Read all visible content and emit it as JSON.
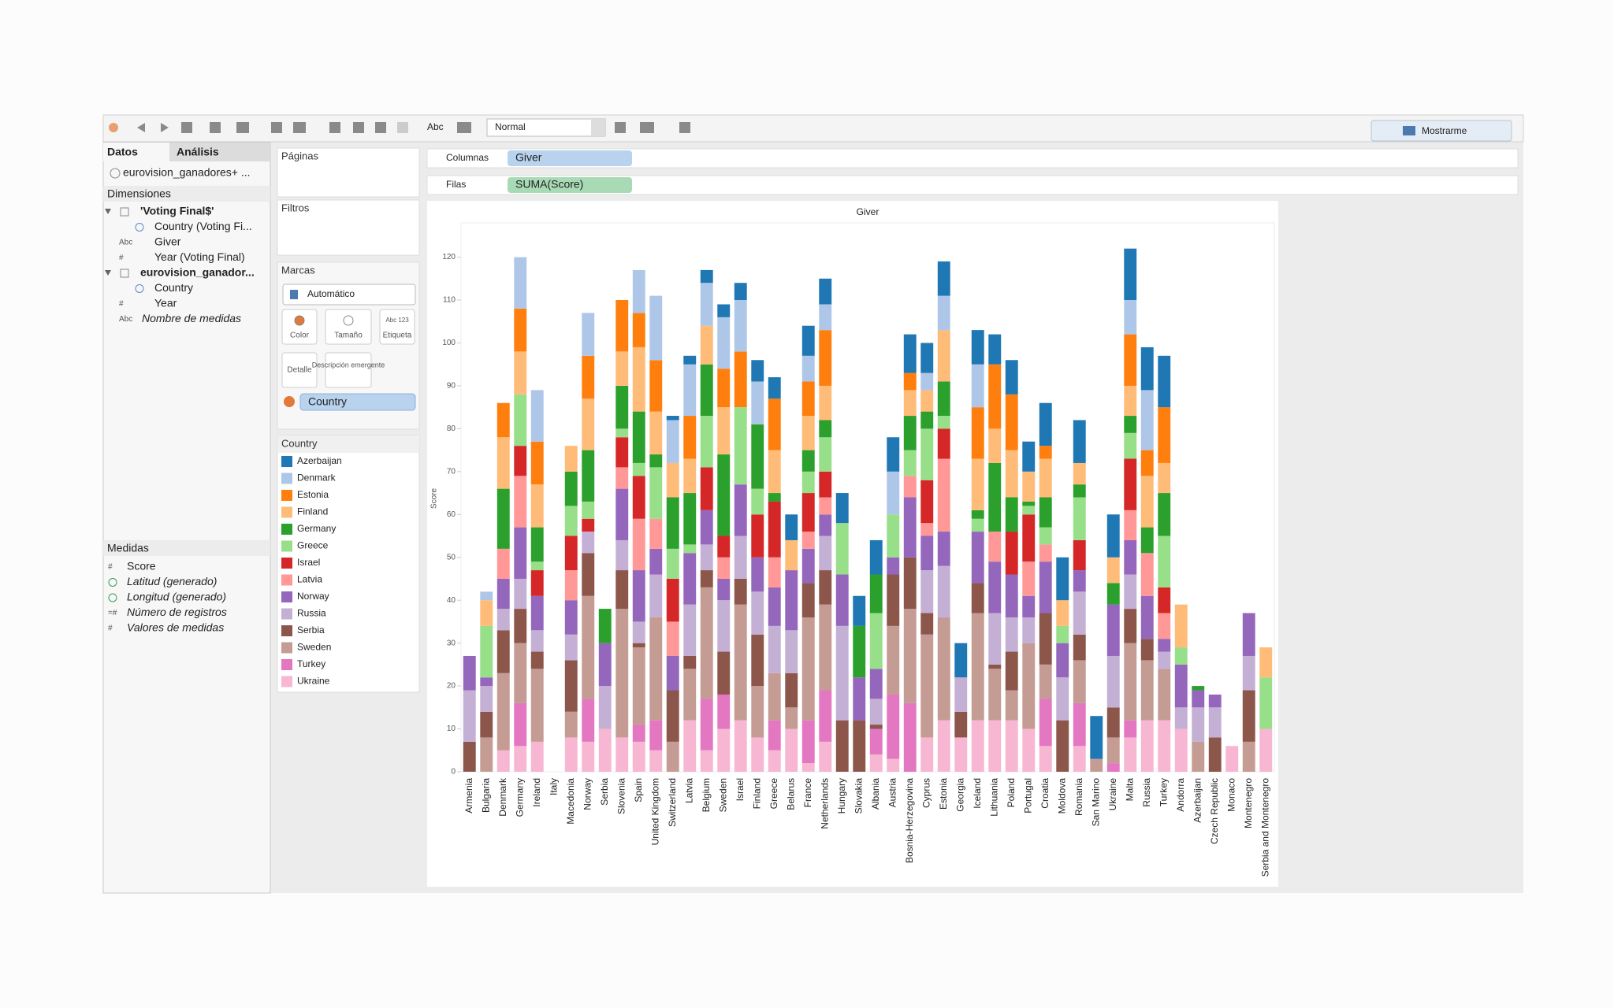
{
  "toolbar": {
    "view_mode": "Normal",
    "show_me": "Mostrarme"
  },
  "sidebar": {
    "tabs": [
      "Datos",
      "Análisis"
    ],
    "datasource": "eurovision_ganadores+ ...",
    "dimensions_title": "Dimensiones",
    "dimensions": [
      {
        "label": "'Voting Final$'",
        "level": 0
      },
      {
        "label": "Country (Voting Fi...",
        "level": 1
      },
      {
        "label": "Giver",
        "level": 1,
        "icon": "Abc"
      },
      {
        "label": "Year (Voting Final)",
        "level": 1,
        "icon": "#"
      },
      {
        "label": "eurovision_ganador...",
        "level": 0
      },
      {
        "label": "Country",
        "level": 1
      },
      {
        "label": "Year",
        "level": 1,
        "icon": "#"
      },
      {
        "label": "Nombre de medidas",
        "level": 1,
        "icon": "Abc",
        "italic": true
      }
    ],
    "measures_title": "Medidas",
    "measures": [
      {
        "label": "Score",
        "icon": "#"
      },
      {
        "label": "Latitud (generado)",
        "italic": true
      },
      {
        "label": "Longitud (generado)",
        "italic": true
      },
      {
        "label": "Número de registros",
        "icon": "=#",
        "italic": true
      },
      {
        "label": "Valores de medidas",
        "icon": "#",
        "italic": true
      }
    ]
  },
  "shelves": {
    "pages": "Páginas",
    "filters": "Filtros",
    "marks": "Marcas",
    "mark_type": "Automático",
    "mark_buttons": [
      "Color",
      "Tamaño",
      "Etiqueta",
      "Detalle",
      "Descripción emergente"
    ],
    "label_icon": "Abc 123",
    "mark_field": "Country",
    "columns_label": "Columnas",
    "columns_pill": "Giver",
    "rows_label": "Filas",
    "rows_pill": "SUMA(Score)",
    "legend_title": "Country"
  },
  "chart_data": {
    "type": "stacked_bar",
    "title": "Giver",
    "y_label": "Score",
    "grid": false,
    "categories": [
      "Armenia",
      "Bulgaria",
      "Denmark",
      "Germany",
      "Ireland",
      "Italy",
      "Macedonia",
      "Norway",
      "Serbia",
      "Slovenia",
      "Spain",
      "United Kingdom",
      "Switzerland",
      "Latvia",
      "Belgium",
      "Sweden",
      "Israel",
      "Finland",
      "Greece",
      "Belarus",
      "France",
      "Netherlands",
      "Hungary",
      "Slovakia",
      "Albania",
      "Austria",
      "Bosnia-Herzegovina",
      "Cyprus",
      "Estonia",
      "Georgia",
      "Iceland",
      "Lithuania",
      "Poland",
      "Portugal",
      "Croatia",
      "Moldova",
      "Romania",
      "San Marino",
      "Ukraine",
      "Malta",
      "Russia",
      "Turkey",
      "Andorra",
      "Azerbaijan",
      "Czech Republic",
      "Monaco",
      "Montenegro",
      "Serbia and Montenegro"
    ],
    "ylim": [
      0,
      128
    ],
    "yticks": [
      0,
      10,
      20,
      30,
      40,
      50,
      60,
      70,
      80,
      90,
      100,
      110,
      120
    ],
    "series": [
      {
        "name": "Azerbaijan",
        "color": "#1f77b4",
        "values": [
          0,
          0,
          0,
          0,
          0,
          0,
          0,
          0,
          0,
          0,
          0,
          0,
          1,
          2,
          3,
          3,
          4,
          5,
          5,
          6,
          7,
          6,
          7,
          7,
          8,
          8,
          9,
          7,
          8,
          8,
          8,
          7,
          8,
          7,
          10,
          10,
          10,
          10,
          10,
          12,
          10,
          12,
          0,
          0,
          0,
          0,
          0,
          0
        ]
      },
      {
        "name": "Denmark",
        "color": "#aec7e8",
        "values": [
          0,
          2,
          0,
          12,
          12,
          0,
          0,
          10,
          0,
          0,
          10,
          15,
          10,
          12,
          10,
          12,
          12,
          10,
          0,
          0,
          6,
          6,
          0,
          0,
          0,
          10,
          0,
          4,
          8,
          0,
          10,
          0,
          0,
          0,
          0,
          0,
          0,
          0,
          0,
          8,
          14,
          0,
          0,
          0,
          0,
          0,
          0,
          0
        ]
      },
      {
        "name": "Estonia",
        "color": "#ff7f0e",
        "values": [
          0,
          0,
          8,
          10,
          10,
          0,
          0,
          10,
          0,
          12,
          8,
          12,
          0,
          10,
          0,
          9,
          13,
          0,
          12,
          0,
          8,
          13,
          0,
          0,
          0,
          0,
          4,
          0,
          0,
          0,
          12,
          15,
          13,
          0,
          3,
          0,
          0,
          0,
          0,
          12,
          6,
          13,
          0,
          0,
          0,
          0,
          0,
          0
        ]
      },
      {
        "name": "Finland",
        "color": "#ffbb78",
        "values": [
          0,
          6,
          12,
          10,
          10,
          0,
          6,
          12,
          0,
          8,
          15,
          10,
          8,
          8,
          9,
          11,
          0,
          0,
          10,
          7,
          8,
          8,
          0,
          0,
          0,
          0,
          6,
          5,
          12,
          0,
          12,
          8,
          11,
          7,
          9,
          6,
          5,
          0,
          6,
          7,
          12,
          7,
          10,
          0,
          0,
          0,
          0,
          7
        ]
      },
      {
        "name": "Germany",
        "color": "#2ca02c",
        "values": [
          0,
          0,
          14,
          0,
          8,
          0,
          8,
          12,
          8,
          10,
          12,
          3,
          12,
          12,
          12,
          19,
          0,
          15,
          2,
          0,
          5,
          4,
          0,
          12,
          9,
          0,
          8,
          4,
          8,
          0,
          2,
          16,
          8,
          1,
          7,
          0,
          3,
          0,
          5,
          4,
          6,
          10,
          0,
          1,
          0,
          0,
          0,
          0
        ]
      },
      {
        "name": "Greece",
        "color": "#98df8a",
        "values": [
          0,
          12,
          0,
          12,
          2,
          0,
          7,
          4,
          0,
          2,
          3,
          12,
          7,
          2,
          12,
          0,
          18,
          6,
          0,
          0,
          5,
          8,
          12,
          0,
          13,
          10,
          6,
          12,
          3,
          0,
          3,
          0,
          0,
          2,
          4,
          4,
          10,
          0,
          0,
          6,
          0,
          12,
          4,
          0,
          0,
          0,
          0,
          12
        ]
      },
      {
        "name": "Israel",
        "color": "#d62728",
        "values": [
          0,
          0,
          0,
          7,
          6,
          0,
          8,
          3,
          0,
          7,
          10,
          0,
          10,
          0,
          10,
          5,
          0,
          10,
          13,
          0,
          9,
          6,
          0,
          0,
          0,
          0,
          0,
          10,
          7,
          0,
          0,
          0,
          10,
          11,
          0,
          0,
          7,
          0,
          0,
          12,
          0,
          6,
          0,
          0,
          0,
          0,
          0,
          0
        ]
      },
      {
        "name": "Latvia",
        "color": "#ff9896",
        "values": [
          0,
          0,
          7,
          12,
          0,
          0,
          7,
          0,
          0,
          5,
          12,
          7,
          8,
          0,
          0,
          5,
          0,
          0,
          7,
          0,
          4,
          4,
          0,
          0,
          0,
          0,
          5,
          3,
          17,
          0,
          0,
          7,
          0,
          8,
          4,
          0,
          0,
          0,
          0,
          7,
          10,
          6,
          0,
          0,
          0,
          0,
          0,
          0
        ]
      },
      {
        "name": "Norway",
        "color": "#9467bd",
        "values": [
          8,
          2,
          7,
          12,
          8,
          0,
          8,
          0,
          10,
          12,
          12,
          6,
          8,
          12,
          8,
          5,
          12,
          8,
          9,
          14,
          8,
          5,
          12,
          10,
          7,
          4,
          14,
          8,
          8,
          0,
          12,
          12,
          10,
          5,
          12,
          8,
          5,
          0,
          12,
          8,
          10,
          3,
          10,
          4,
          3,
          0,
          10,
          0
        ]
      },
      {
        "name": "Russia",
        "color": "#c5b0d5",
        "values": [
          12,
          6,
          5,
          7,
          5,
          0,
          6,
          5,
          10,
          7,
          5,
          10,
          0,
          12,
          6,
          12,
          10,
          10,
          11,
          10,
          0,
          8,
          22,
          0,
          6,
          0,
          0,
          10,
          12,
          8,
          0,
          12,
          8,
          6,
          0,
          10,
          10,
          0,
          12,
          8,
          0,
          4,
          5,
          8,
          7,
          0,
          8,
          0
        ]
      },
      {
        "name": "Serbia",
        "color": "#8c564b",
        "values": [
          7,
          6,
          10,
          8,
          4,
          0,
          12,
          10,
          0,
          9,
          1,
          0,
          12,
          3,
          4,
          10,
          6,
          12,
          0,
          8,
          8,
          8,
          12,
          12,
          1,
          12,
          12,
          5,
          0,
          6,
          7,
          1,
          9,
          0,
          12,
          12,
          6,
          0,
          7,
          8,
          5,
          0,
          0,
          0,
          8,
          0,
          12,
          0
        ]
      },
      {
        "name": "Sweden",
        "color": "#c49c94",
        "values": [
          0,
          8,
          18,
          14,
          17,
          0,
          6,
          24,
          0,
          30,
          18,
          24,
          7,
          12,
          26,
          0,
          27,
          12,
          11,
          5,
          24,
          20,
          0,
          0,
          0,
          16,
          22,
          24,
          24,
          0,
          25,
          12,
          7,
          20,
          8,
          0,
          10,
          3,
          6,
          18,
          14,
          12,
          0,
          7,
          0,
          0,
          7,
          0
        ]
      },
      {
        "name": "Turkey",
        "color": "#e377c2",
        "values": [
          0,
          0,
          0,
          10,
          0,
          0,
          0,
          10,
          0,
          0,
          4,
          7,
          0,
          0,
          12,
          8,
          0,
          0,
          7,
          0,
          10,
          12,
          0,
          0,
          6,
          15,
          16,
          0,
          0,
          0,
          0,
          0,
          0,
          0,
          11,
          0,
          10,
          0,
          2,
          4,
          0,
          0,
          0,
          0,
          0,
          0,
          0,
          0
        ]
      },
      {
        "name": "Ukraine",
        "color": "#f7b6d2",
        "values": [
          0,
          0,
          5,
          6,
          7,
          0,
          8,
          7,
          10,
          8,
          7,
          5,
          0,
          12,
          5,
          10,
          12,
          8,
          5,
          10,
          2,
          7,
          0,
          0,
          4,
          3,
          0,
          8,
          12,
          8,
          12,
          12,
          12,
          10,
          6,
          0,
          6,
          0,
          0,
          8,
          12,
          12,
          10,
          0,
          0,
          6,
          0,
          10
        ]
      }
    ]
  }
}
